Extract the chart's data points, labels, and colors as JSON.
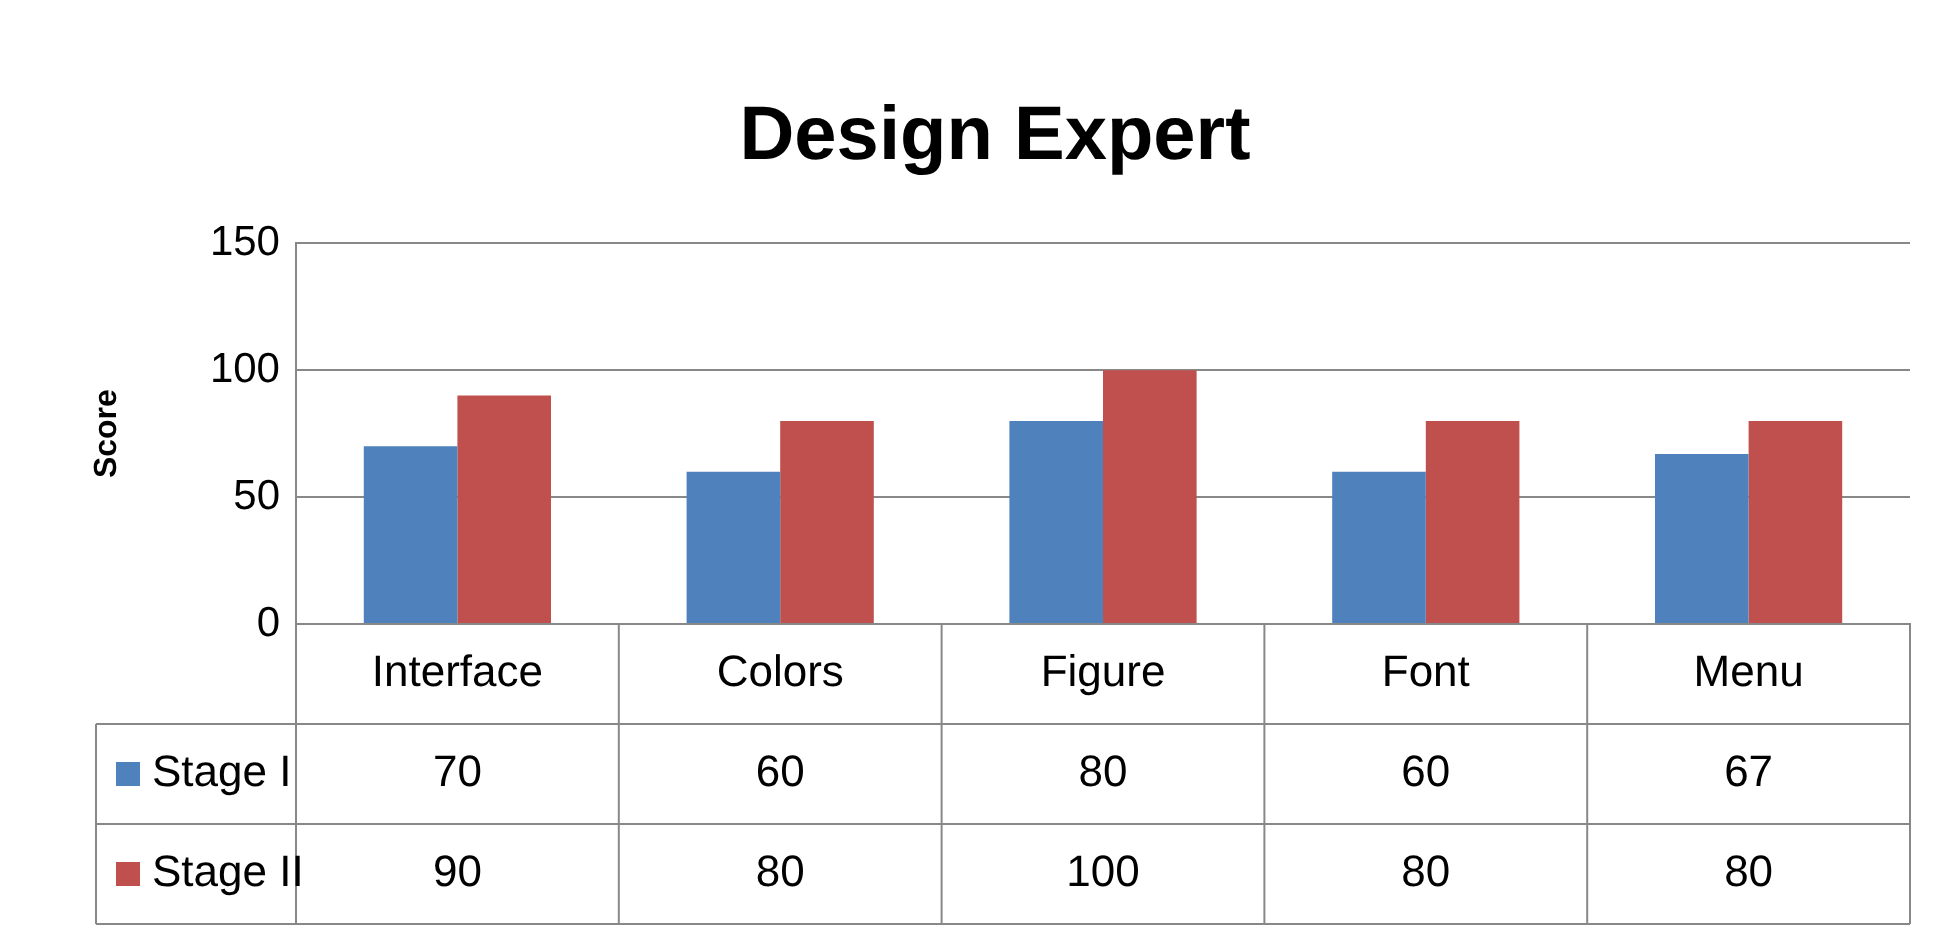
{
  "chart_data": {
    "type": "bar",
    "title": "Design Expert",
    "ylabel": "Score",
    "categories": [
      "Interface",
      "Colors",
      "Figure",
      "Font",
      "Menu"
    ],
    "series": [
      {
        "name": "Stage I",
        "color": "#4f81bd",
        "values": [
          70,
          60,
          80,
          60,
          67
        ]
      },
      {
        "name": "Stage II",
        "color": "#c0504d",
        "values": [
          90,
          80,
          100,
          80,
          80
        ]
      }
    ],
    "ylim": [
      0,
      150
    ],
    "yticks": [
      0,
      50,
      100,
      150
    ],
    "grid": "y",
    "legend": "bottom",
    "data_labels": true
  }
}
